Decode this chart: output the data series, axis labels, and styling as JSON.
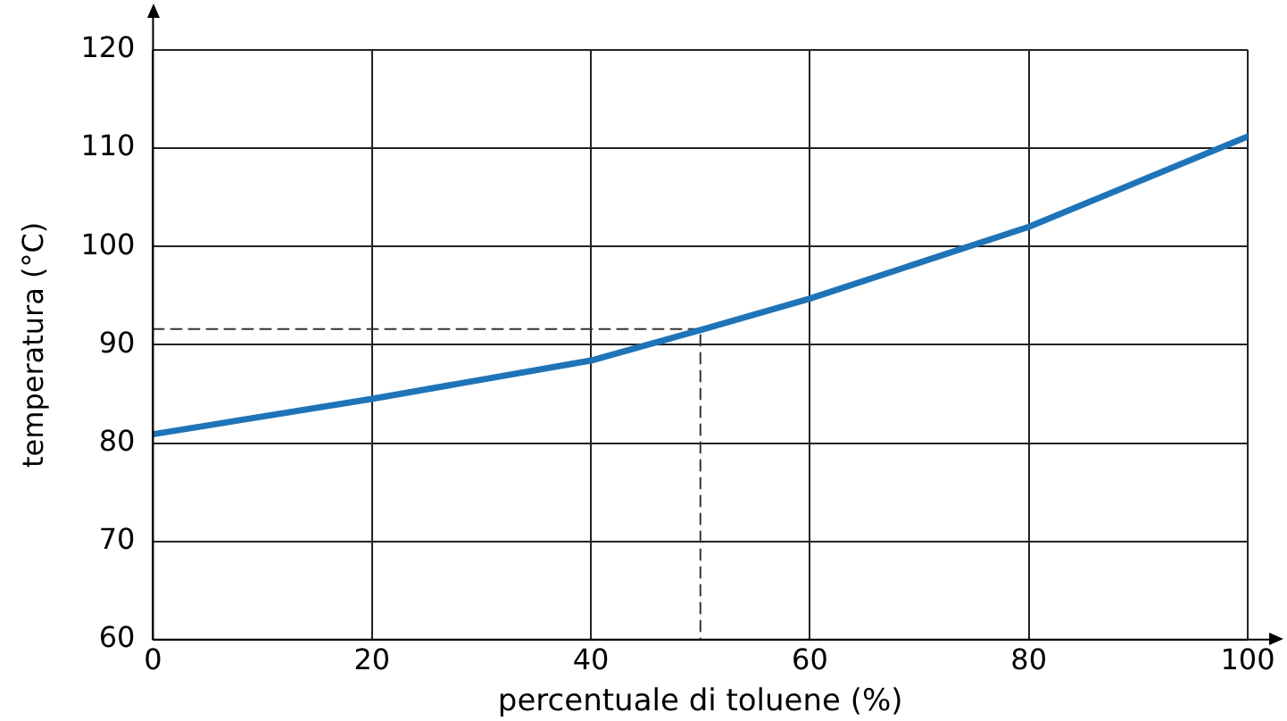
{
  "chart_data": {
    "type": "line",
    "xlabel": "percentuale di toluene (%)",
    "ylabel": "temperatura (°C)",
    "xlim": [
      0,
      100
    ],
    "xticks": [
      0,
      20,
      40,
      60,
      80,
      100
    ],
    "ylim": [
      60,
      120
    ],
    "yticks": [
      60,
      70,
      80,
      90,
      100,
      110,
      120
    ],
    "grid": true,
    "marker": "none",
    "series": [
      {
        "color": "#1f74b8",
        "x": [
          0,
          20,
          40,
          50,
          60,
          80,
          100
        ],
        "values": [
          80.9,
          84.5,
          88.4,
          91.5,
          94.7,
          102,
          111.2
        ]
      },
      {
        "color": "#333333",
        "line_style": "dashed",
        "x": [
          0,
          50,
          50
        ],
        "values": [
          91.6,
          91.6,
          60
        ]
      }
    ]
  }
}
